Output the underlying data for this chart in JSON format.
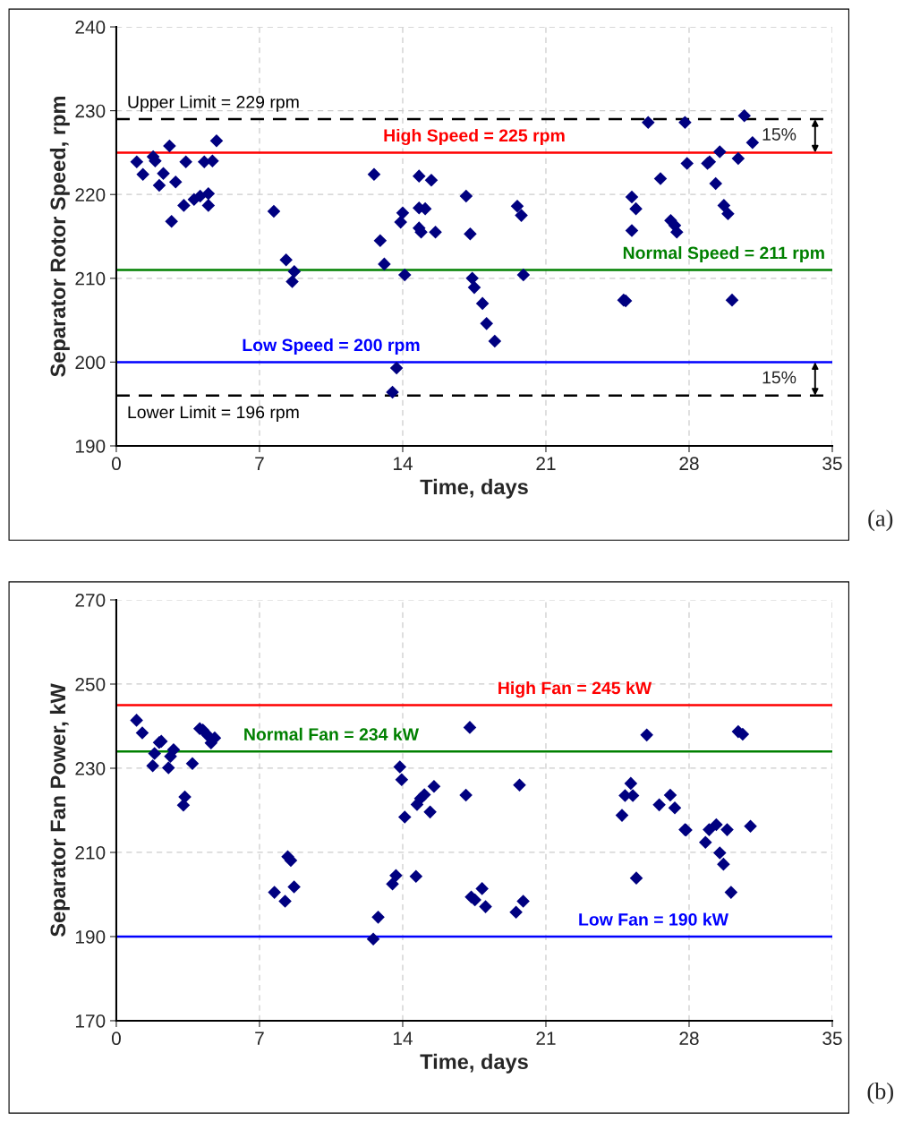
{
  "chart_data": [
    {
      "type": "scatter",
      "xlabel": "Time, days",
      "ylabel": "Separator Rotor Speed, rpm",
      "xlim": [
        0,
        35
      ],
      "xticks": [
        0,
        7,
        14,
        21,
        28,
        35
      ],
      "ylim": [
        190,
        240
      ],
      "yticks": [
        190,
        200,
        210,
        220,
        230,
        240
      ],
      "grid": true,
      "marker": "diamond",
      "series": [
        {
          "color": "#000080",
          "x": [
            1.0,
            1.3,
            1.8,
            1.9,
            2.1,
            2.3,
            2.6,
            2.9,
            2.7,
            3.4,
            3.3,
            3.8,
            4.1,
            4.3,
            4.5,
            4.5,
            4.7,
            4.9,
            7.7,
            8.3,
            8.7,
            8.6,
            12.6,
            12.9,
            13.1,
            13.7,
            13.5,
            13.9,
            14.0,
            14.1,
            14.8,
            14.8,
            14.8,
            14.9,
            15.1,
            15.4,
            15.6,
            17.1,
            17.3,
            17.4,
            17.5,
            17.9,
            18.1,
            18.5,
            19.6,
            19.8,
            19.9,
            24.8,
            24.9,
            25.2,
            25.4,
            25.2,
            26.0,
            26.6,
            27.1,
            27.3,
            27.4,
            27.8,
            27.9,
            28.9,
            29.0,
            29.3,
            29.5,
            29.7,
            29.9,
            30.1,
            30.4,
            30.7,
            31.1
          ],
          "values": [
            223.9,
            222.4,
            224.5,
            224.0,
            221.1,
            222.5,
            225.8,
            221.5,
            216.8,
            223.9,
            218.7,
            219.4,
            219.8,
            223.9,
            220.1,
            218.7,
            224.0,
            226.4,
            218.0,
            212.2,
            210.8,
            209.6,
            222.4,
            214.5,
            211.7,
            199.3,
            196.4,
            216.7,
            217.8,
            210.4,
            218.4,
            222.2,
            216.0,
            215.5,
            218.3,
            221.7,
            215.5,
            219.8,
            215.3,
            210.0,
            208.9,
            207.0,
            204.6,
            202.5,
            218.6,
            217.5,
            210.4,
            207.4,
            207.3,
            219.7,
            218.3,
            215.7,
            228.6,
            221.9,
            216.9,
            216.3,
            215.5,
            228.6,
            223.7,
            223.7,
            223.9,
            221.3,
            225.1,
            218.7,
            217.7,
            207.4,
            224.3,
            229.4,
            226.2
          ]
        }
      ],
      "ref_lines": [
        {
          "axis": "y",
          "value": 229,
          "label": "Upper Limit = 229 rpm",
          "color": "#000000",
          "line_style": "dashed"
        },
        {
          "axis": "y",
          "value": 225,
          "label": "High Speed = 225 rpm",
          "color": "#ff0000",
          "line_style": "solid"
        },
        {
          "axis": "y",
          "value": 211,
          "label": "Normal Speed = 211 rpm",
          "color": "#008000",
          "line_style": "solid"
        },
        {
          "axis": "y",
          "value": 200,
          "label": "Low Speed = 200 rpm",
          "color": "#0000ff",
          "line_style": "solid"
        },
        {
          "axis": "y",
          "value": 196,
          "label": "Lower Limit = 196 rpm",
          "color": "#000000",
          "line_style": "dashed"
        }
      ],
      "annotations": [
        "15%",
        "15%",
        "(a)"
      ]
    },
    {
      "type": "scatter",
      "xlabel": "Time, days",
      "ylabel": "Separator Fan Power, kW",
      "xlim": [
        0,
        35
      ],
      "xticks": [
        0,
        7,
        14,
        21,
        28,
        35
      ],
      "ylim": [
        170,
        270
      ],
      "yticks": [
        170,
        190,
        210,
        230,
        250,
        270
      ],
      "grid": true,
      "marker": "diamond",
      "series": [
        {
          "color": "#000080",
          "x": [
            0.99,
            1.27,
            2.1,
            2.2,
            1.87,
            1.78,
            2.8,
            2.65,
            2.55,
            3.35,
            3.28,
            3.72,
            4.08,
            4.23,
            4.45,
            4.81,
            4.63,
            7.73,
            8.25,
            8.38,
            8.53,
            8.69,
            12.56,
            12.8,
            13.5,
            13.67,
            13.86,
            13.95,
            14.1,
            14.65,
            14.7,
            14.87,
            15.06,
            15.34,
            15.53,
            17.09,
            17.28,
            17.35,
            17.53,
            17.88,
            18.05,
            19.54,
            19.89,
            19.71,
            25.93,
            30.4,
            30.62,
            25.15,
            24.87,
            25.25,
            24.72,
            25.42,
            26.54,
            27.08,
            27.3,
            27.8,
            27.85,
            28.8,
            28.98,
            29.33,
            29.86,
            29.5,
            29.68,
            30.05,
            31.0
          ],
          "values": [
            241.4,
            238.4,
            236.1,
            236.4,
            233.5,
            230.6,
            234.4,
            232.8,
            230.1,
            223.2,
            221.2,
            231.1,
            239.4,
            239.1,
            237.9,
            237.2,
            236.0,
            200.5,
            198.4,
            209.0,
            208.1,
            201.8,
            189.4,
            194.6,
            202.5,
            204.5,
            230.3,
            227.3,
            218.4,
            204.3,
            221.4,
            222.8,
            223.7,
            219.6,
            225.7,
            223.6,
            239.7,
            199.4,
            198.7,
            201.4,
            197.1,
            195.8,
            198.4,
            226.0,
            237.9,
            238.7,
            238.1,
            226.4,
            223.5,
            223.5,
            218.8,
            203.9,
            221.3,
            223.6,
            220.6,
            215.4,
            215.3,
            212.4,
            215.4,
            216.6,
            215.4,
            209.9,
            207.2,
            200.5,
            216.2
          ]
        }
      ],
      "ref_lines": [
        {
          "axis": "y",
          "value": 245,
          "label": "High Fan = 245 kW",
          "color": "#ff0000",
          "line_style": "solid"
        },
        {
          "axis": "y",
          "value": 234,
          "label": "Normal Fan = 234 kW",
          "color": "#008000",
          "line_style": "solid"
        },
        {
          "axis": "y",
          "value": 190,
          "label": "Low Fan = 190 kW",
          "color": "#0000ff",
          "line_style": "solid"
        }
      ],
      "annotations": [
        "(b)"
      ]
    }
  ]
}
